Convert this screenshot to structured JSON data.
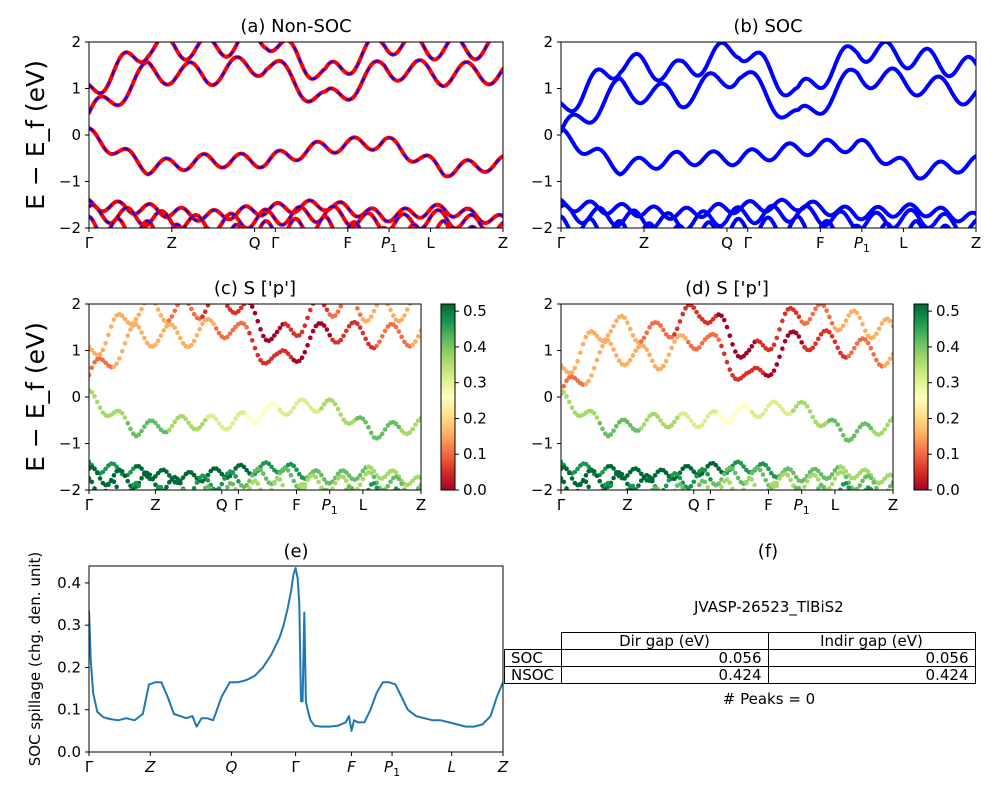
{
  "figure": {
    "ylabel": "E − E_f (eV)",
    "panel_titles": [
      "(a) Non-SOC",
      "(b) SOC",
      "(c)  S ['p']",
      "(d) S ['p']",
      "(e)",
      "(f)"
    ],
    "kpath_labels": [
      "Γ",
      "Z",
      "Q",
      "Γ",
      "F",
      "P",
      "L",
      "Z"
    ],
    "kpath_sub": "1"
  },
  "colors": {
    "nonsoc_line": "#ff0000",
    "nonsoc_dash": "#0000ff",
    "soc_line": "#0000ff",
    "spillage_line": "#1f77b4"
  },
  "chart_data": [
    {
      "type": "line",
      "panel": "a",
      "title": "(a) Non-SOC",
      "ylabel": "E − E_f (eV)",
      "ylim": [
        -2,
        2
      ],
      "yticks": [
        -2,
        -1,
        0,
        1,
        2
      ],
      "xticks": [
        "Γ",
        "Z",
        "Q",
        "Γ",
        "F",
        "P₁",
        "L",
        "Z"
      ],
      "xtick_positions": [
        0,
        0.2,
        0.4,
        0.45,
        0.625,
        0.725,
        0.825,
        1.0
      ],
      "series": [
        {
          "values_sample": [
            0.4,
            1.35,
            1.3,
            1.55,
            0.7,
            1.45,
            1.3,
            1.35
          ]
        },
        {
          "values_sample": [
            0.0,
            -0.7,
            -0.55,
            -0.55,
            -0.25,
            -0.15,
            -0.75,
            -0.6
          ]
        },
        {
          "values_sample": [
            -1.5,
            -1.6,
            -1.75,
            -1.6,
            -1.5,
            -1.75,
            -1.6,
            -1.85
          ]
        }
      ]
    },
    {
      "type": "line",
      "panel": "b",
      "title": "(b) SOC",
      "ylim": [
        -2,
        2
      ],
      "yticks": [
        -2,
        -1,
        0,
        1,
        2
      ],
      "xticks": [
        "Γ",
        "Z",
        "Q",
        "Γ",
        "F",
        "P₁",
        "L",
        "Z"
      ],
      "xtick_positions": [
        0,
        0.2,
        0.4,
        0.45,
        0.625,
        0.725,
        0.825,
        1.0
      ],
      "series": [
        {
          "values_sample": [
            0.0,
            1.0,
            0.8,
            1.35,
            0.3,
            1.3,
            1.1,
            0.85
          ]
        },
        {
          "values_sample": [
            0.0,
            -0.7,
            -0.5,
            -0.5,
            -0.3,
            -0.2,
            -0.8,
            -0.6
          ]
        },
        {
          "values_sample": [
            -1.5,
            -1.6,
            -1.7,
            -1.55,
            -1.5,
            -1.7,
            -1.6,
            -1.8
          ]
        }
      ]
    },
    {
      "type": "scatter",
      "panel": "c",
      "title": "(c)  S ['p']",
      "ylabel": "E − E_f (eV)",
      "ylim": [
        -2,
        2
      ],
      "colorbar": {
        "ticks": [
          0.0,
          0.1,
          0.2,
          0.3,
          0.4,
          0.5
        ],
        "range": [
          0.0,
          0.52
        ],
        "colormap": "RdYlGn"
      }
    },
    {
      "type": "scatter",
      "panel": "d",
      "title": "(d) S ['p']",
      "ylim": [
        -2,
        2
      ],
      "colorbar": {
        "ticks": [
          0.0,
          0.1,
          0.2,
          0.3,
          0.4,
          0.5
        ],
        "range": [
          0.0,
          0.52
        ],
        "colormap": "RdYlGn"
      }
    },
    {
      "type": "line",
      "panel": "e",
      "title": "(e)",
      "ylabel": "SOC spillage (chg. den. unit)",
      "ylim": [
        0.0,
        0.44
      ],
      "yticks": [
        0.0,
        0.1,
        0.2,
        0.3,
        0.4
      ],
      "xticks": [
        "Γ",
        "Z",
        "Q",
        "Γ",
        "F",
        "P₁",
        "L",
        "Z"
      ],
      "xtick_positions": [
        0,
        0.148,
        0.344,
        0.499,
        0.634,
        0.732,
        0.876,
        1.0
      ],
      "x": [
        0.0,
        0.004,
        0.01,
        0.02,
        0.035,
        0.05,
        0.07,
        0.09,
        0.11,
        0.13,
        0.145,
        0.16,
        0.175,
        0.19,
        0.205,
        0.22,
        0.235,
        0.25,
        0.26,
        0.272,
        0.285,
        0.3,
        0.32,
        0.34,
        0.36,
        0.38,
        0.4,
        0.42,
        0.44,
        0.46,
        0.47,
        0.48,
        0.488,
        0.494,
        0.499,
        0.504,
        0.508,
        0.512,
        0.516,
        0.52,
        0.524,
        0.528,
        0.535,
        0.545,
        0.56,
        0.58,
        0.6,
        0.62,
        0.628,
        0.634,
        0.64,
        0.65,
        0.665,
        0.68,
        0.695,
        0.71,
        0.725,
        0.74,
        0.755,
        0.77,
        0.79,
        0.81,
        0.83,
        0.85,
        0.87,
        0.89,
        0.91,
        0.93,
        0.95,
        0.97,
        0.985,
        1.0
      ],
      "values": [
        0.335,
        0.22,
        0.14,
        0.095,
        0.082,
        0.078,
        0.075,
        0.08,
        0.075,
        0.09,
        0.16,
        0.165,
        0.165,
        0.13,
        0.09,
        0.085,
        0.08,
        0.085,
        0.06,
        0.08,
        0.08,
        0.075,
        0.13,
        0.165,
        0.165,
        0.17,
        0.18,
        0.2,
        0.23,
        0.27,
        0.3,
        0.34,
        0.38,
        0.42,
        0.435,
        0.41,
        0.35,
        0.12,
        0.12,
        0.33,
        0.12,
        0.1,
        0.075,
        0.062,
        0.06,
        0.06,
        0.062,
        0.07,
        0.085,
        0.05,
        0.075,
        0.07,
        0.07,
        0.1,
        0.14,
        0.165,
        0.165,
        0.16,
        0.13,
        0.1,
        0.085,
        0.08,
        0.075,
        0.075,
        0.07,
        0.065,
        0.06,
        0.06,
        0.065,
        0.085,
        0.13,
        0.165
      ]
    }
  ],
  "info": {
    "title": "(f)",
    "name": "JVASP-26523_TlBiS2",
    "headers": [
      "Dir gap (eV)",
      "Indir gap (eV)"
    ],
    "rows": [
      {
        "label": "SOC",
        "dir": "0.056",
        "indir": "0.056"
      },
      {
        "label": "NSOC",
        "dir": "0.424",
        "indir": "0.424"
      }
    ],
    "peaks": "# Peaks = 0"
  }
}
